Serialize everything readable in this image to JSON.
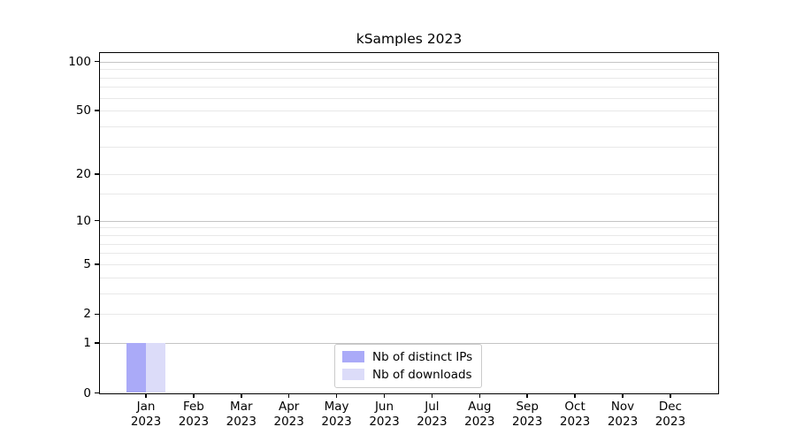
{
  "figure": {
    "background": "#ffffff"
  },
  "chart_data": {
    "type": "bar",
    "title": "kSamples 2023",
    "scale": "log1p",
    "categories": [
      "Jan",
      "Feb",
      "Mar",
      "Apr",
      "May",
      "Jun",
      "Jul",
      "Aug",
      "Sep",
      "Oct",
      "Nov",
      "Dec"
    ],
    "x_year_label": "2023",
    "series": [
      {
        "name": "Nb of distinct IPs",
        "color": "#aaaaf8",
        "values": [
          1,
          0,
          0,
          0,
          0,
          0,
          0,
          0,
          0,
          0,
          0,
          0
        ]
      },
      {
        "name": "Nb of downloads",
        "color": "#dcdcf9",
        "values": [
          1,
          0,
          0,
          0,
          0,
          0,
          0,
          0,
          0,
          0,
          0,
          0
        ]
      }
    ],
    "y_major_ticks": [
      0,
      1,
      2,
      5,
      10,
      20,
      50,
      100
    ],
    "y_minor_gridlines": [
      3,
      4,
      6,
      7,
      8,
      9,
      15,
      30,
      40,
      60,
      70,
      80,
      90
    ],
    "ylim": [
      0,
      112
    ],
    "xlabel": "",
    "ylabel": "",
    "grid": "horizontal",
    "legend": {
      "position": "bottom-center"
    },
    "colors": {
      "decade_gridline": "#c4c4c4",
      "minor_gridline": "#e8e8e8",
      "axis": "#000000",
      "text": "#000000"
    }
  }
}
